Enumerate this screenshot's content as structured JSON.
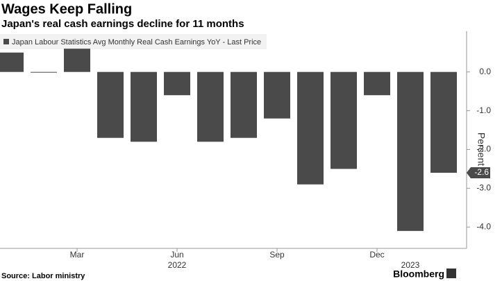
{
  "chart_data": {
    "type": "bar",
    "title": "Wages Keep Falling",
    "subtitle": "Japan's real cash earnings decline for 11 months",
    "categories": [
      null,
      null,
      "Mar",
      null,
      null,
      "Jun",
      null,
      null,
      "Sep",
      null,
      null,
      "Dec",
      null,
      null
    ],
    "year_labels": [
      {
        "label": "2022",
        "category": 5
      },
      {
        "label": "2023",
        "category": 12
      }
    ],
    "series": [
      {
        "name": "Japan Labour Statistics Avg Monthly Real Cash Earnings YoY - Last Price",
        "color": "#4a4a4a",
        "values": [
          0.5,
          0.0,
          0.6,
          -1.7,
          -1.8,
          -0.6,
          -1.8,
          -1.7,
          -1.2,
          -2.9,
          -2.5,
          -0.6,
          -4.1,
          -2.6
        ],
        "value_labels": [
          null,
          null,
          null,
          null,
          null,
          null,
          null,
          null,
          null,
          null,
          null,
          null,
          null,
          "-2.6"
        ]
      }
    ],
    "y_label": "Percent",
    "ylim": [
      -4.55,
      1.05
    ],
    "yticks": [
      {
        "value": 0,
        "label": "0.0"
      },
      {
        "value": -1,
        "label": "-1.0"
      },
      {
        "value": -2,
        "label": "-2.0"
      },
      {
        "value": -3,
        "label": "-3.0"
      },
      {
        "value": -4,
        "label": "-4.0"
      }
    ],
    "source": "Source: Labor ministry",
    "logo": "Bloomberg"
  }
}
